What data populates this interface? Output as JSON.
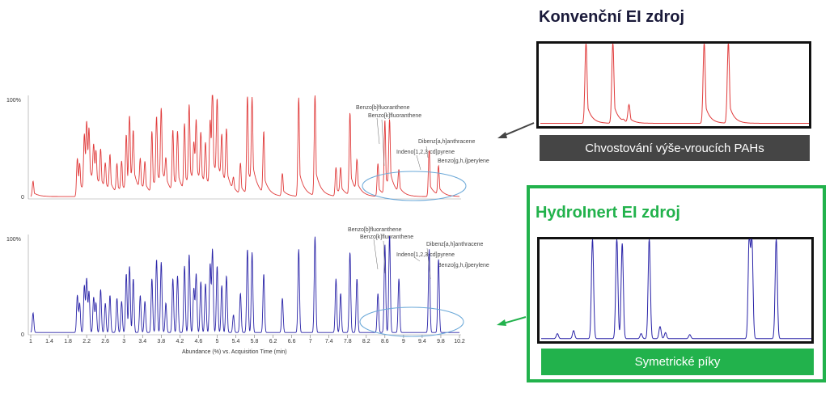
{
  "colors": {
    "conventional": "#e03a3a",
    "hydroinert": "#2a24a8",
    "green": "#22b24c",
    "dark_band": "#454545",
    "title_dark": "#1a1a3a"
  },
  "right_panel": {
    "conventional": {
      "title": "Konvenční EI zdroj",
      "caption": "Chvostování výše-vroucích PAHs"
    },
    "hydroinert": {
      "title": "HydroInert EI zdroj",
      "caption": "Symetrické píky"
    }
  },
  "chart_data": [
    {
      "type": "line",
      "name": "top-chromatogram",
      "color": "#e03a3a",
      "yticks": [
        "100%",
        "0"
      ],
      "ylim": [
        0,
        100
      ],
      "xlim": [
        1,
        10.2
      ],
      "grid": false,
      "annotations": [
        "Benzo[b]fluoranthene",
        "Benzo[k]fluoranthene",
        "Indeno[1,2,3-cd]pyrene",
        "Dibenz[a,h]anthracene",
        "Benzo[g,h,i]perylene"
      ],
      "tailing": true,
      "peaks": [
        [
          1.05,
          15
        ],
        [
          2.0,
          37
        ],
        [
          2.05,
          26
        ],
        [
          2.15,
          55
        ],
        [
          2.2,
          60
        ],
        [
          2.25,
          48
        ],
        [
          2.35,
          38
        ],
        [
          2.4,
          30
        ],
        [
          2.5,
          37
        ],
        [
          2.6,
          25
        ],
        [
          2.7,
          35
        ],
        [
          2.85,
          28
        ],
        [
          2.95,
          30
        ],
        [
          3.05,
          55
        ],
        [
          3.12,
          68
        ],
        [
          3.2,
          50
        ],
        [
          3.35,
          30
        ],
        [
          3.45,
          28
        ],
        [
          3.6,
          60
        ],
        [
          3.7,
          70
        ],
        [
          3.8,
          75
        ],
        [
          3.9,
          25
        ],
        [
          4.05,
          60
        ],
        [
          4.15,
          55
        ],
        [
          4.3,
          65
        ],
        [
          4.4,
          80
        ],
        [
          4.5,
          40
        ],
        [
          4.55,
          60
        ],
        [
          4.65,
          50
        ],
        [
          4.75,
          42
        ],
        [
          4.85,
          65
        ],
        [
          4.9,
          92
        ],
        [
          5.0,
          78
        ],
        [
          5.1,
          45
        ],
        [
          5.2,
          55
        ],
        [
          5.35,
          12
        ],
        [
          5.5,
          30
        ],
        [
          5.65,
          95
        ],
        [
          5.75,
          85
        ],
        [
          6.0,
          60
        ],
        [
          6.4,
          22
        ],
        [
          6.75,
          96
        ],
        [
          7.1,
          98
        ],
        [
          7.55,
          28
        ],
        [
          7.65,
          25
        ],
        [
          7.85,
          80
        ],
        [
          8.0,
          30
        ],
        [
          8.45,
          32
        ],
        [
          8.6,
          72
        ],
        [
          8.7,
          66
        ],
        [
          8.9,
          22
        ],
        [
          9.55,
          45
        ],
        [
          9.75,
          28
        ]
      ]
    },
    {
      "type": "line",
      "name": "bottom-chromatogram",
      "color": "#2a24a8",
      "yticks": [
        "100%",
        "0"
      ],
      "ylim": [
        0,
        100
      ],
      "xlim": [
        1,
        10.2
      ],
      "grid": false,
      "xlabel": "Abundance (%) vs. Acquisition Time (min)",
      "xticks": [
        "1",
        "1.4",
        "1.8",
        "2.2",
        "2.6",
        "3",
        "3.4",
        "3.8",
        "4.2",
        "4.6",
        "5",
        "5.4",
        "5.8",
        "6.2",
        "6.6",
        "7",
        "7.4",
        "7.8",
        "8.2",
        "8.6",
        "9",
        "9.4",
        "9.8",
        "10.2"
      ],
      "annotations": [
        "Benzo[b]fluoranthene",
        "Benzo[k]fluoranthene",
        "Indeno[1,2,3-cd]pyrene",
        "Dibenz[a,h]anthracene",
        "Benzo[g,h,i]perylene"
      ],
      "tailing": false,
      "peaks": [
        [
          1.05,
          20
        ],
        [
          2.0,
          38
        ],
        [
          2.05,
          30
        ],
        [
          2.15,
          48
        ],
        [
          2.2,
          55
        ],
        [
          2.25,
          42
        ],
        [
          2.35,
          36
        ],
        [
          2.4,
          30
        ],
        [
          2.5,
          44
        ],
        [
          2.6,
          30
        ],
        [
          2.7,
          38
        ],
        [
          2.85,
          35
        ],
        [
          2.95,
          32
        ],
        [
          3.05,
          60
        ],
        [
          3.12,
          68
        ],
        [
          3.2,
          55
        ],
        [
          3.35,
          38
        ],
        [
          3.45,
          32
        ],
        [
          3.6,
          55
        ],
        [
          3.7,
          75
        ],
        [
          3.8,
          72
        ],
        [
          3.9,
          30
        ],
        [
          4.05,
          55
        ],
        [
          4.15,
          58
        ],
        [
          4.3,
          68
        ],
        [
          4.4,
          80
        ],
        [
          4.5,
          45
        ],
        [
          4.55,
          60
        ],
        [
          4.65,
          52
        ],
        [
          4.75,
          50
        ],
        [
          4.85,
          70
        ],
        [
          4.9,
          85
        ],
        [
          5.0,
          68
        ],
        [
          5.1,
          48
        ],
        [
          5.2,
          58
        ],
        [
          5.35,
          18
        ],
        [
          5.5,
          40
        ],
        [
          5.65,
          85
        ],
        [
          5.75,
          82
        ],
        [
          6.0,
          60
        ],
        [
          6.4,
          35
        ],
        [
          6.75,
          85
        ],
        [
          7.1,
          98
        ],
        [
          7.55,
          55
        ],
        [
          7.65,
          40
        ],
        [
          7.85,
          82
        ],
        [
          8.0,
          55
        ],
        [
          8.45,
          40
        ],
        [
          8.6,
          90
        ],
        [
          8.7,
          100
        ],
        [
          8.9,
          55
        ],
        [
          9.55,
          85
        ],
        [
          9.75,
          75
        ]
      ]
    },
    {
      "type": "line",
      "name": "zoom-conventional",
      "color": "#e03a3a",
      "tailing": true,
      "grid": false,
      "xlim": [
        0,
        100
      ],
      "ylim": [
        0,
        100
      ],
      "peaks": [
        [
          17,
          100
        ],
        [
          27,
          100
        ],
        [
          31,
          2
        ],
        [
          33,
          22
        ],
        [
          61,
          100
        ],
        [
          70,
          100
        ]
      ]
    },
    {
      "type": "line",
      "name": "zoom-hydroinert",
      "color": "#2a24a8",
      "tailing": false,
      "grid": false,
      "xlim": [
        0,
        100
      ],
      "ylim": [
        0,
        100
      ],
      "peaks": [
        [
          6,
          5
        ],
        [
          12,
          8
        ],
        [
          19,
          100
        ],
        [
          28,
          100
        ],
        [
          30,
          95
        ],
        [
          37,
          5
        ],
        [
          40,
          100
        ],
        [
          44,
          12
        ],
        [
          46,
          6
        ],
        [
          55,
          4
        ],
        [
          77,
          100
        ],
        [
          78,
          98
        ],
        [
          87,
          100
        ]
      ]
    }
  ]
}
